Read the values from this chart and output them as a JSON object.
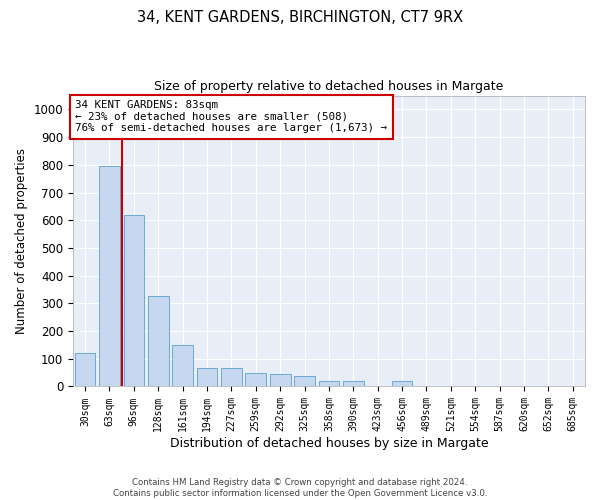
{
  "title1": "34, KENT GARDENS, BIRCHINGTON, CT7 9RX",
  "title2": "Size of property relative to detached houses in Margate",
  "xlabel": "Distribution of detached houses by size in Margate",
  "ylabel": "Number of detached properties",
  "annotation_line1": "34 KENT GARDENS: 83sqm",
  "annotation_line2": "← 23% of detached houses are smaller (508)",
  "annotation_line3": "76% of semi-detached houses are larger (1,673) →",
  "footer1": "Contains HM Land Registry data © Crown copyright and database right 2024.",
  "footer2": "Contains public sector information licensed under the Open Government Licence v3.0.",
  "bar_color": "#c5d8f0",
  "bar_edge_color": "#6aaad4",
  "background_color": "#e8eef8",
  "annotation_box_color": "#ffffff",
  "annotation_box_edge": "#cc0000",
  "categories": [
    "30sqm",
    "63sqm",
    "96sqm",
    "128sqm",
    "161sqm",
    "194sqm",
    "227sqm",
    "259sqm",
    "292sqm",
    "325sqm",
    "358sqm",
    "390sqm",
    "423sqm",
    "456sqm",
    "489sqm",
    "521sqm",
    "554sqm",
    "587sqm",
    "620sqm",
    "652sqm",
    "685sqm"
  ],
  "values": [
    120,
    795,
    620,
    325,
    150,
    65,
    65,
    50,
    45,
    38,
    20,
    18,
    0,
    18,
    0,
    0,
    0,
    0,
    0,
    0,
    0
  ],
  "ylim": [
    0,
    1050
  ],
  "yticks": [
    0,
    100,
    200,
    300,
    400,
    500,
    600,
    700,
    800,
    900,
    1000
  ],
  "red_line_bin": 1.5,
  "figwidth": 6.0,
  "figheight": 5.0,
  "dpi": 100
}
